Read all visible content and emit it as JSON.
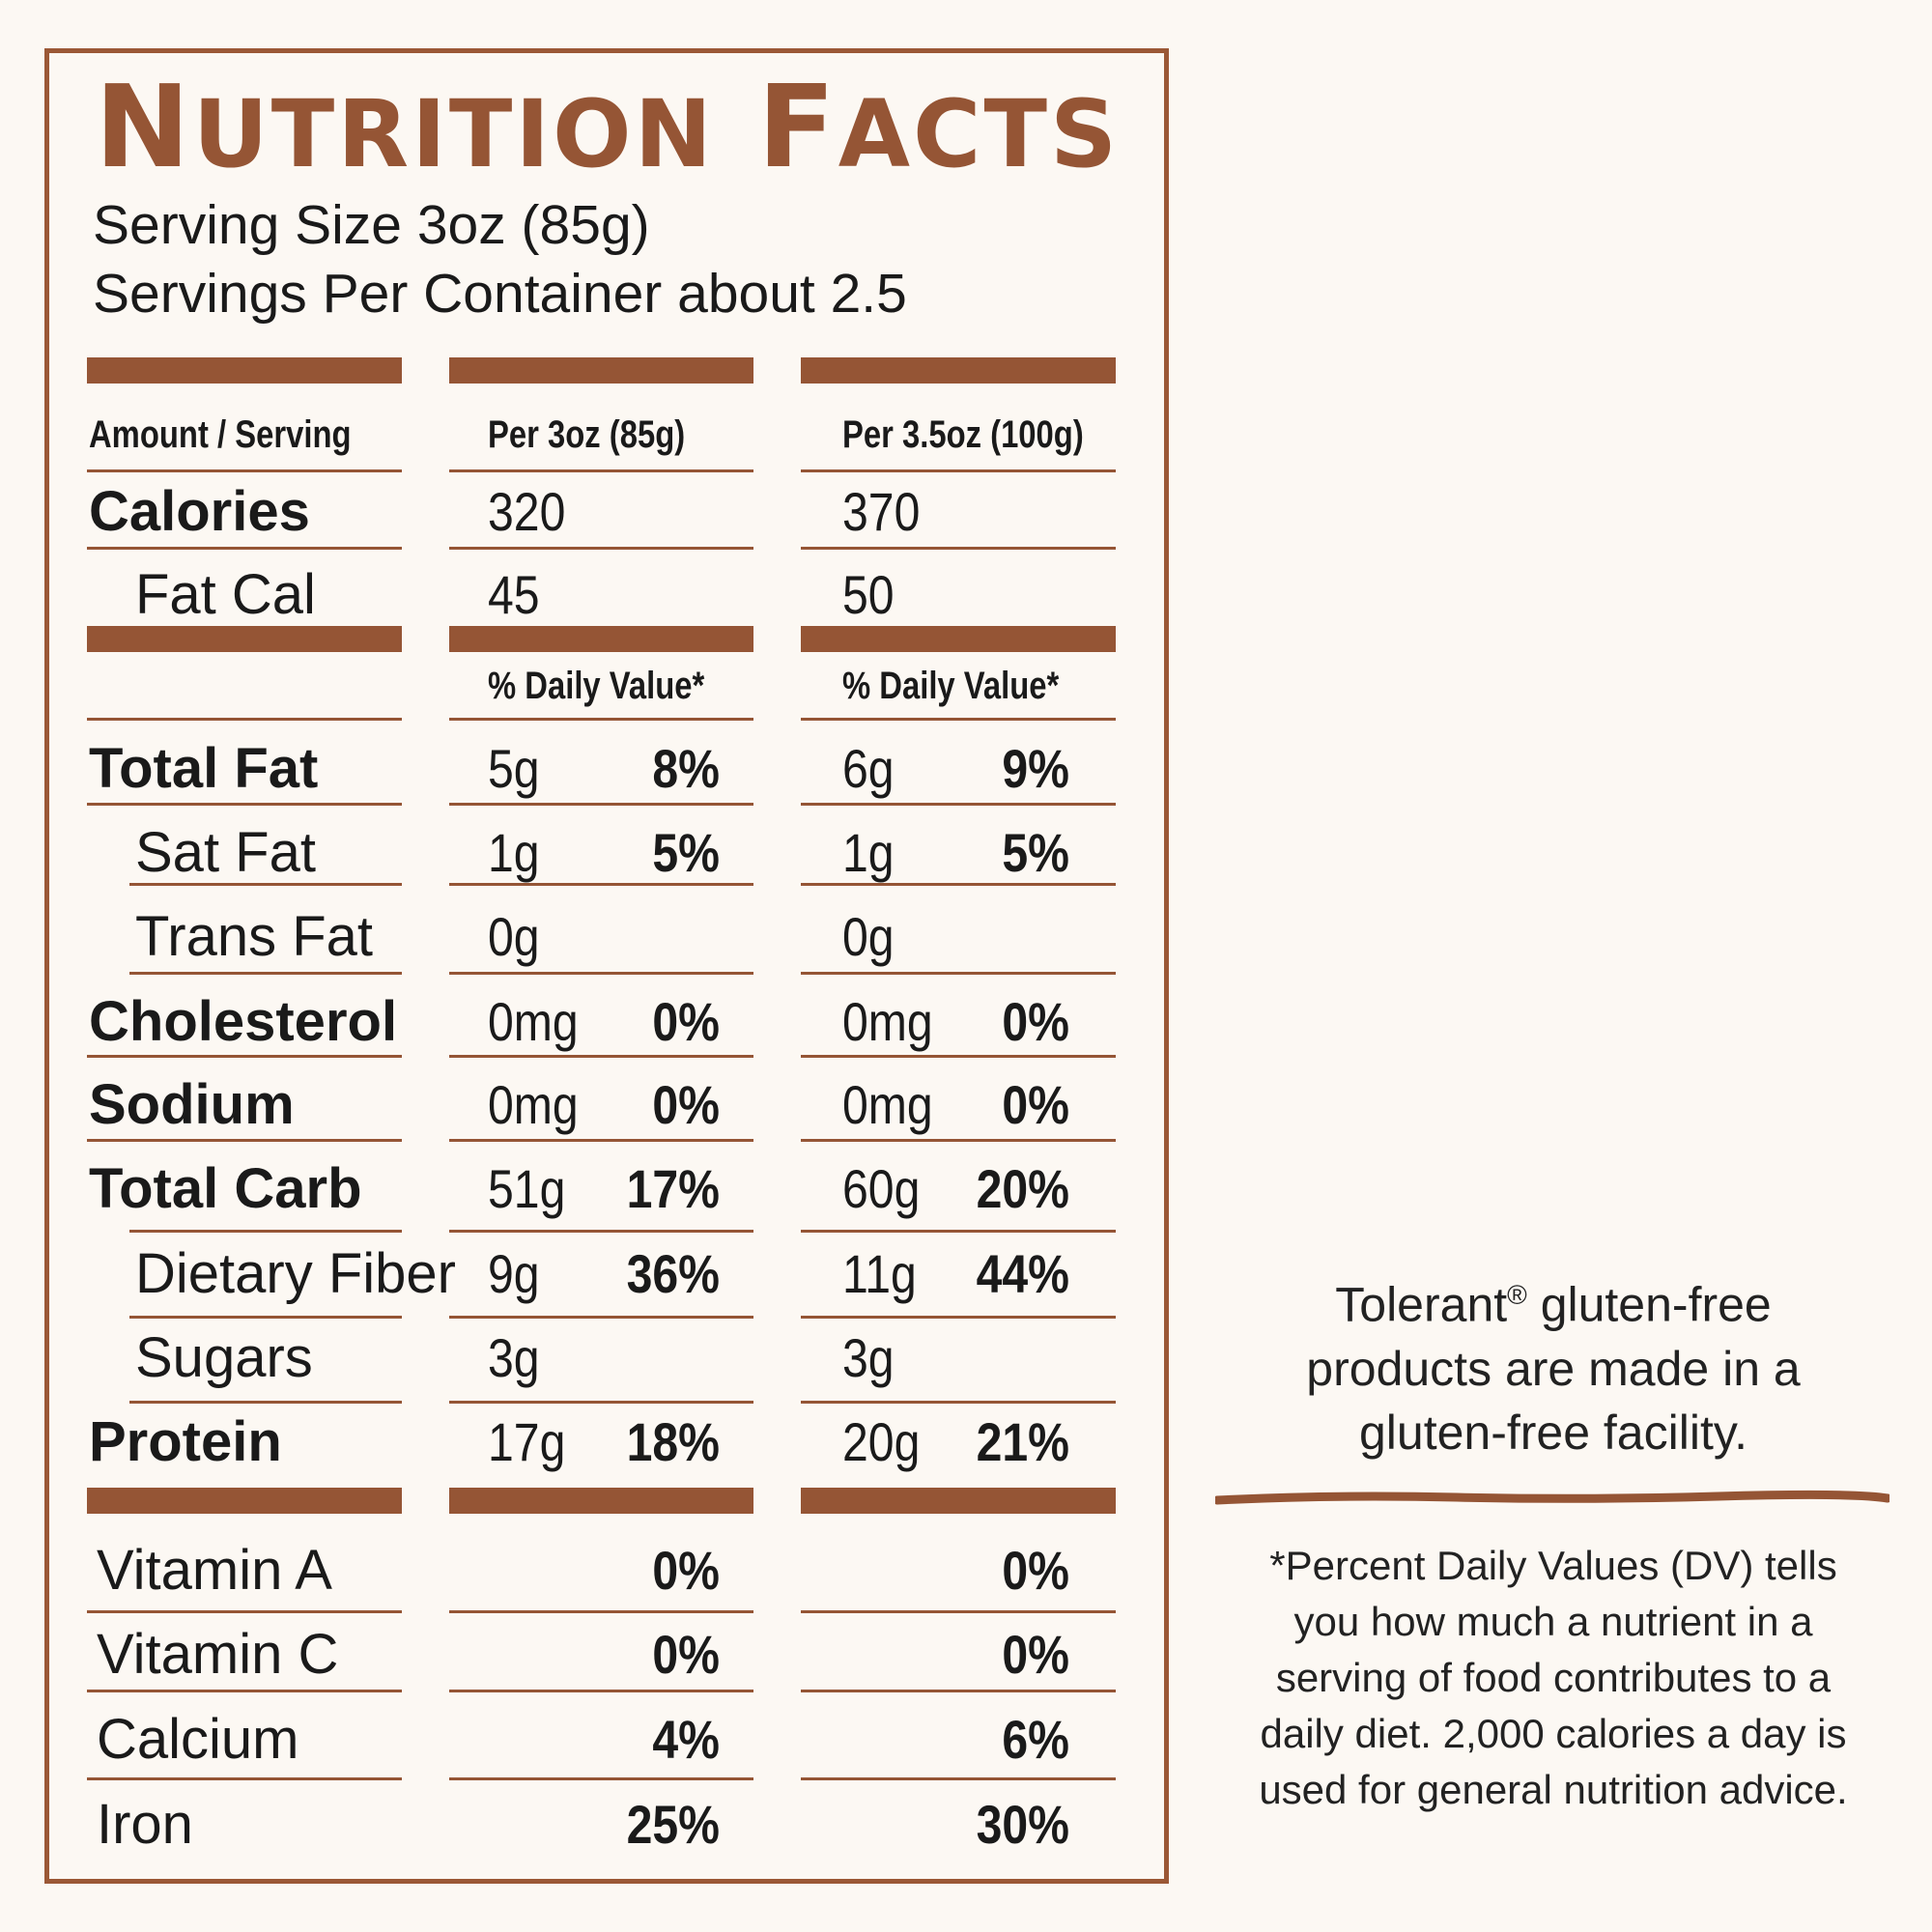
{
  "title": {
    "big1": "N",
    "small1": "UTRITION",
    "big2": "F",
    "small2": "ACTS"
  },
  "serving_size": "Serving Size 3oz (85g)",
  "servings_per_container": "Servings Per Container about 2.5",
  "columns": {
    "amount_label": "Amount / Serving",
    "per_85g": "Per 3oz (85g)",
    "per_100g": "Per 3.5oz (100g)",
    "daily_value_label": "% Daily Value*"
  },
  "calories": {
    "label": "Calories",
    "a": "320",
    "b": "370"
  },
  "fat_cal": {
    "label": "Fat Cal",
    "a": "45",
    "b": "50"
  },
  "nutrients": [
    {
      "label": "Total Fat",
      "a_amt": "5g",
      "a_pct": "8%",
      "b_amt": "6g",
      "b_pct": "9%"
    },
    {
      "label": "Sat Fat",
      "a_amt": "1g",
      "a_pct": "5%",
      "b_amt": "1g",
      "b_pct": "5%"
    },
    {
      "label": "Trans Fat",
      "a_amt": "0g",
      "a_pct": "",
      "b_amt": "0g",
      "b_pct": ""
    },
    {
      "label": "Cholesterol",
      "a_amt": "0mg",
      "a_pct": "0%",
      "b_amt": "0mg",
      "b_pct": "0%"
    },
    {
      "label": "Sodium",
      "a_amt": "0mg",
      "a_pct": "0%",
      "b_amt": "0mg",
      "b_pct": "0%"
    },
    {
      "label": "Total Carb",
      "a_amt": "51g",
      "a_pct": "17%",
      "b_amt": "60g",
      "b_pct": "20%"
    },
    {
      "label": "Dietary Fiber",
      "a_amt": "9g",
      "a_pct": "36%",
      "b_amt": "11g",
      "b_pct": "44%"
    },
    {
      "label": "Sugars",
      "a_amt": "3g",
      "a_pct": "",
      "b_amt": "3g",
      "b_pct": ""
    },
    {
      "label": "Protein",
      "a_amt": "17g",
      "a_pct": "18%",
      "b_amt": "20g",
      "b_pct": "21%"
    }
  ],
  "vitamins": [
    {
      "label": "Vitamin A",
      "a_pct": "0%",
      "b_pct": "0%"
    },
    {
      "label": "Vitamin C",
      "a_pct": "0%",
      "b_pct": "0%"
    },
    {
      "label": "Calcium",
      "a_pct": "4%",
      "b_pct": "6%"
    },
    {
      "label": "Iron",
      "a_pct": "25%",
      "b_pct": "30%"
    }
  ],
  "side_note": {
    "brand": "Tolerant",
    "reg": "®",
    "line1_rest": " gluten-free",
    "line2": "products are made in a",
    "line3": "gluten-free facility."
  },
  "footnote": {
    "line1": "*Percent Daily Values (DV) tells",
    "line2": "you how much a nutrient in a",
    "line3": "serving of food contributes to a",
    "line4": "daily diet. 2,000 calories a day is",
    "line5": "used for general nutrition advice."
  },
  "colors": {
    "accent": "#955535",
    "background": "#fcf8f3",
    "text": "#1a1a1a"
  }
}
